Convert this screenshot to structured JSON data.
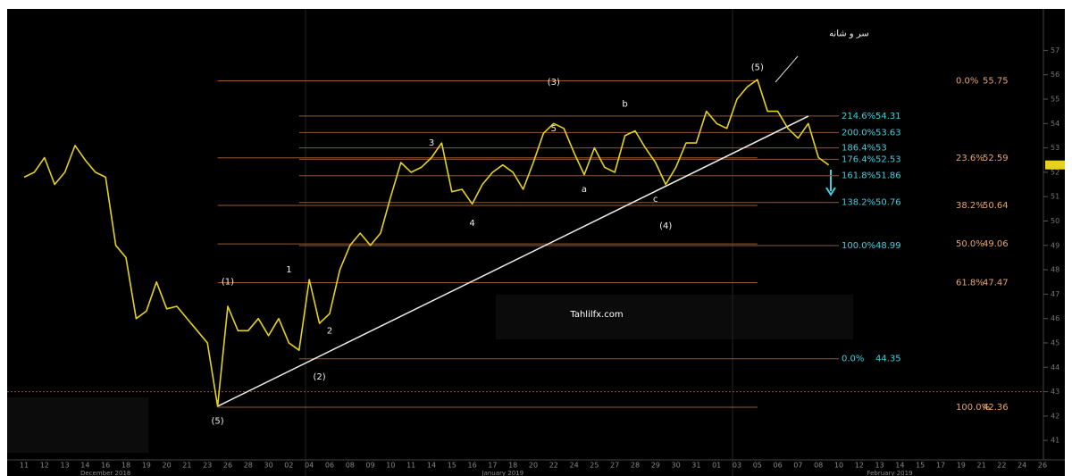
{
  "chart_data": {
    "type": "line",
    "categories": [
      "11",
      null,
      "12",
      null,
      "13",
      null,
      "14",
      null,
      "16",
      null,
      "18",
      null,
      "19",
      null,
      "20",
      null,
      "21",
      null,
      "23",
      null,
      "26",
      null,
      "28",
      null,
      "30",
      null,
      "02",
      null,
      "04",
      null,
      "06",
      null,
      "08",
      null,
      "09",
      null,
      "10",
      null,
      "11",
      null,
      "14",
      null,
      "15",
      null,
      "16",
      null,
      "17",
      null,
      "18",
      null,
      "20",
      null,
      "22",
      null,
      "24",
      null,
      "25",
      null,
      "27",
      null,
      "28",
      null,
      "29",
      null,
      "30",
      null,
      "31",
      null,
      "01",
      null,
      "03",
      null,
      "05",
      null,
      "06",
      null,
      "07",
      null,
      "08",
      null,
      "10",
      null,
      "12",
      null,
      "13",
      null,
      "14",
      null,
      "15",
      null,
      "17",
      null,
      "19",
      null,
      "21",
      null,
      "22",
      null,
      "24",
      null,
      "26"
    ],
    "series": [
      {
        "color": "#e6d21e",
        "values": [
          51.8,
          52.0,
          52.6,
          51.5,
          52.0,
          53.1,
          52.5,
          52.0,
          51.8,
          49.0,
          48.5,
          46.0,
          46.3,
          47.5,
          46.4,
          46.5,
          46.0,
          45.5,
          45.0,
          42.4,
          46.5,
          45.5,
          45.5,
          46.0,
          45.3,
          46.0,
          45.0,
          44.7,
          47.6,
          45.8,
          46.2,
          48.0,
          49.0,
          49.5,
          49.0,
          49.5,
          51.0,
          52.4,
          52.0,
          52.2,
          52.6,
          53.2,
          51.2,
          51.3,
          50.7,
          51.5,
          52.0,
          52.3,
          52.0,
          51.3,
          52.4,
          53.6,
          54.0,
          53.8,
          52.8,
          51.9,
          53.0,
          52.2,
          52.0,
          53.5,
          53.7,
          53.0,
          52.4,
          51.5,
          52.2,
          53.2,
          53.2,
          54.5,
          54.0,
          53.8,
          55.0,
          55.5,
          55.8,
          54.5,
          54.5,
          53.8,
          53.4,
          54.0,
          52.6,
          52.3,
          null,
          null,
          null,
          null,
          null,
          null,
          null,
          null,
          null,
          null,
          null,
          null,
          null,
          null,
          null,
          null,
          null,
          null,
          null,
          null,
          null
        ]
      }
    ],
    "ylim": [
      40.2,
      58.7
    ],
    "yticks": [
      41,
      42,
      43,
      44,
      45,
      46,
      47,
      48,
      49,
      50,
      51,
      52,
      53,
      54,
      55,
      56,
      57
    ],
    "month_labels": [
      {
        "text": "December 2018",
        "x": 8
      },
      {
        "text": "January 2019",
        "x": 47
      },
      {
        "text": "February 2019",
        "x": 85
      }
    ],
    "fib_sets": [
      {
        "color": "#e8a468",
        "line_color": "#9a5a30",
        "x_range": [
          19,
          72
        ],
        "levels": [
          {
            "label": "0.0%",
            "value": 55.75
          },
          {
            "label": "23.6%",
            "value": 52.59
          },
          {
            "label": "38.2%",
            "value": 50.64
          },
          {
            "label": "50.0%",
            "value": 49.06
          },
          {
            "label": "61.8%",
            "value": 47.47
          },
          {
            "label": "100.0%",
            "value": 42.36
          }
        ]
      },
      {
        "color": "#3fcfe0",
        "line_color": "#8a5a3a",
        "x_range": [
          27,
          80
        ],
        "levels": [
          {
            "label": "214.6%",
            "value": 54.31
          },
          {
            "label": "200.0%",
            "value": 53.63
          },
          {
            "label": "186.4%",
            "value": 53
          },
          {
            "label": "176.4%",
            "value": 52.53
          },
          {
            "label": "161.8%",
            "value": 51.86
          },
          {
            "label": "138.2%",
            "value": 50.76
          },
          {
            "label": "100.0%",
            "value": 48.99
          },
          {
            "label": "0.0%",
            "value": 44.35
          }
        ]
      }
    ],
    "support_levels": [
      43
    ],
    "trendline": {
      "x": [
        19,
        77
      ],
      "values": [
        42.4,
        54.3
      ]
    },
    "annotations": [
      {
        "text": "(1)",
        "x": 20,
        "y": 47.5
      },
      {
        "text": "1",
        "x": 26,
        "y": 48.0
      },
      {
        "text": "2",
        "x": 30,
        "y": 45.5
      },
      {
        "text": "(2)",
        "x": 29,
        "y": 43.6
      },
      {
        "text": "3",
        "x": 40,
        "y": 53.2
      },
      {
        "text": "4",
        "x": 44,
        "y": 49.9
      },
      {
        "text": "5",
        "x": 52,
        "y": 53.8
      },
      {
        "text": "(3)",
        "x": 52,
        "y": 55.7
      },
      {
        "text": "a",
        "x": 55,
        "y": 51.3
      },
      {
        "text": "b",
        "x": 59,
        "y": 54.8
      },
      {
        "text": "c",
        "x": 62,
        "y": 50.9
      },
      {
        "text": "(4)",
        "x": 63,
        "y": 49.8
      },
      {
        "text": "(5)",
        "x": 72,
        "y": 56.3
      },
      {
        "text": "(5)",
        "x": 19,
        "y": 41.8
      },
      {
        "text": "سر و شانه",
        "x": 81,
        "y": 57.7
      }
    ],
    "watermark": "Tahlilfx.com"
  }
}
